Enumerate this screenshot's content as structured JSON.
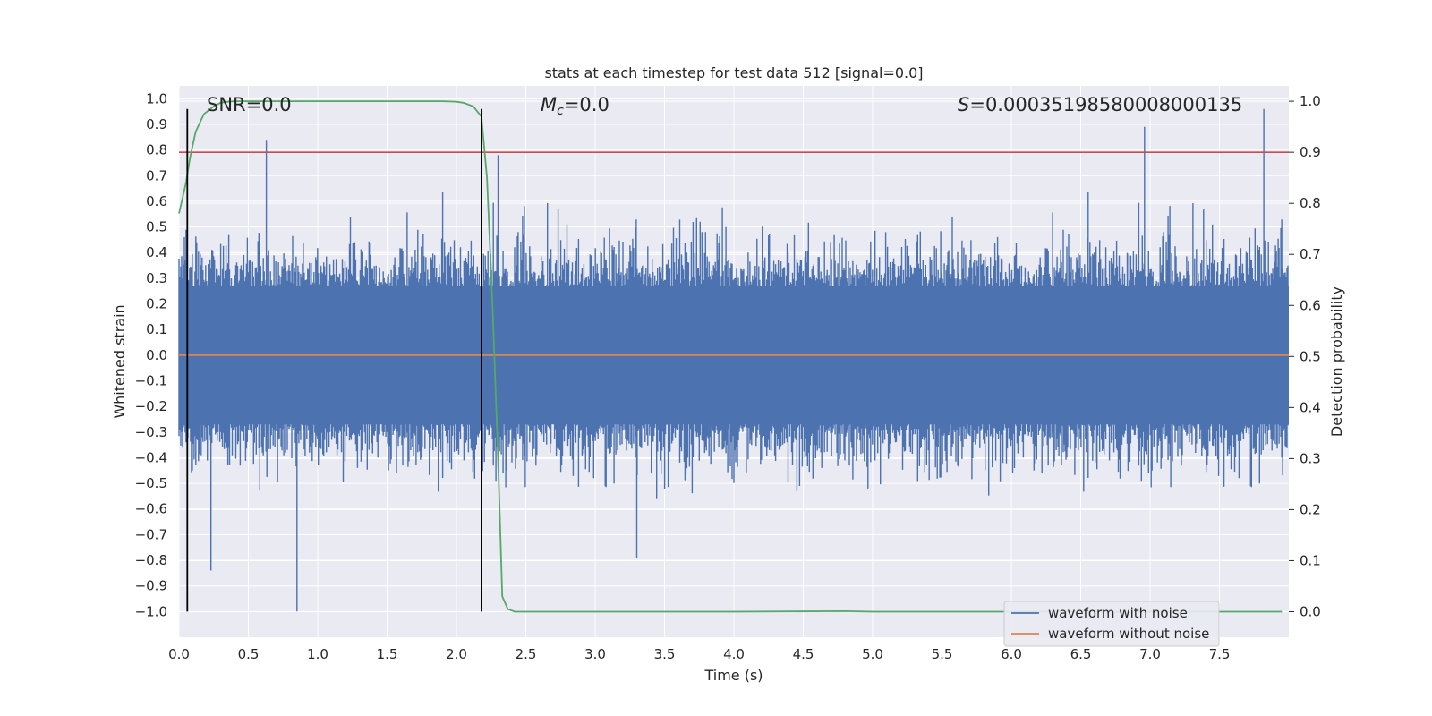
{
  "chart_data": {
    "type": "line",
    "title": "stats at each timestep for test data 512 [signal=0.0]",
    "xlabel": "Time (s)",
    "ylabel": "Whitened strain",
    "y2label": "Detection probability",
    "xlim": [
      0.0,
      8.0
    ],
    "ylim": [
      -1.1,
      1.05
    ],
    "y2lim": [
      -0.05,
      1.03
    ],
    "grid": true,
    "xticks": [
      0.0,
      0.5,
      1.0,
      1.5,
      2.0,
      2.5,
      3.0,
      3.5,
      4.0,
      4.5,
      5.0,
      5.5,
      6.0,
      6.5,
      7.0,
      7.5
    ],
    "xtick_labels": [
      "0.0",
      "0.5",
      "1.0",
      "1.5",
      "2.0",
      "2.5",
      "3.0",
      "3.5",
      "4.0",
      "4.5",
      "5.0",
      "5.5",
      "6.0",
      "6.5",
      "7.0",
      "7.5"
    ],
    "yticks": [
      1.0,
      0.9,
      0.8,
      0.7,
      0.6,
      0.5,
      0.4,
      0.3,
      0.2,
      0.1,
      0.0,
      -0.1,
      -0.2,
      -0.3,
      -0.4,
      -0.5,
      -0.6,
      -0.7,
      -0.8,
      -0.9,
      -1.0
    ],
    "ytick_labels": [
      "1.0",
      "0.9",
      "0.8",
      "0.7",
      "0.6",
      "0.5",
      "0.4",
      "0.3",
      "0.2",
      "0.1",
      "0.0",
      "−0.1",
      "−0.2",
      "−0.3",
      "−0.4",
      "−0.5",
      "−0.6",
      "−0.7",
      "−0.8",
      "−0.9",
      "−1.0"
    ],
    "y2ticks": [
      1.0,
      0.9,
      0.8,
      0.7,
      0.6,
      0.5,
      0.4,
      0.3,
      0.2,
      0.1,
      0.0
    ],
    "y2tick_labels": [
      "1.0",
      "0.9",
      "0.8",
      "0.7",
      "0.6",
      "0.5",
      "0.4",
      "0.3",
      "0.2",
      "0.1",
      "0.0"
    ],
    "annotations": {
      "snr": "SNR=0.0",
      "mc_symbol": "M",
      "mc_subscript": "c",
      "mc_value": "=0.0",
      "s_symbol": "S",
      "s_value": "=0.00035198580008000135"
    },
    "series": [
      {
        "name": "waveform with noise",
        "color": "#4c72b0",
        "axis": "left",
        "description": "whitened noisy strain, dense oscillation roughly within ±0.6",
        "notable_peaks": [
          {
            "x": 0.63,
            "y": 0.84
          },
          {
            "x": 2.3,
            "y": 0.78
          },
          {
            "x": 6.96,
            "y": 0.89
          },
          {
            "x": 7.82,
            "y": 0.96
          },
          {
            "x": 0.85,
            "y": -1.0
          },
          {
            "x": 0.23,
            "y": -0.84
          },
          {
            "x": 3.3,
            "y": -0.79
          }
        ]
      },
      {
        "name": "waveform without noise",
        "color": "#dd8452",
        "axis": "left",
        "x": [
          0.0,
          8.0
        ],
        "y": [
          0.0,
          0.0
        ]
      },
      {
        "name": "detection probability",
        "color": "#55a868",
        "axis": "right",
        "x": [
          0.0,
          0.05,
          0.08,
          0.12,
          0.18,
          0.25,
          0.3,
          0.35,
          0.4,
          0.5,
          1.0,
          1.5,
          1.9,
          2.0,
          2.05,
          2.12,
          2.18,
          2.22,
          2.26,
          2.3,
          2.33,
          2.37,
          2.42,
          3.0,
          4.0,
          4.8,
          5.0,
          6.0,
          7.0,
          7.95
        ],
        "y": [
          0.78,
          0.84,
          0.89,
          0.94,
          0.975,
          0.99,
          0.997,
          0.999,
          1.0,
          1.0,
          1.0,
          1.0,
          1.0,
          0.999,
          0.997,
          0.99,
          0.97,
          0.85,
          0.6,
          0.3,
          0.03,
          0.005,
          0.0,
          0.0,
          0.0,
          0.001,
          0.0,
          0.0,
          0.0,
          0.0
        ]
      }
    ],
    "threshold": {
      "value": 0.9,
      "axis": "right",
      "color": "#c44e52"
    },
    "vlines": [
      {
        "x": 0.06,
        "y_from": -1.0,
        "y_to": 0.96,
        "color": "#000000"
      },
      {
        "x": 2.18,
        "y_from": -1.0,
        "y_to": 0.96,
        "color": "#000000"
      }
    ],
    "legend": {
      "location": "lower-right",
      "entries": [
        {
          "label": "waveform with noise",
          "color": "#4c72b0"
        },
        {
          "label": "waveform without noise",
          "color": "#dd8452"
        }
      ]
    },
    "colors": {
      "plot_background": "#eaeaf2",
      "grid": "#ffffff"
    }
  }
}
